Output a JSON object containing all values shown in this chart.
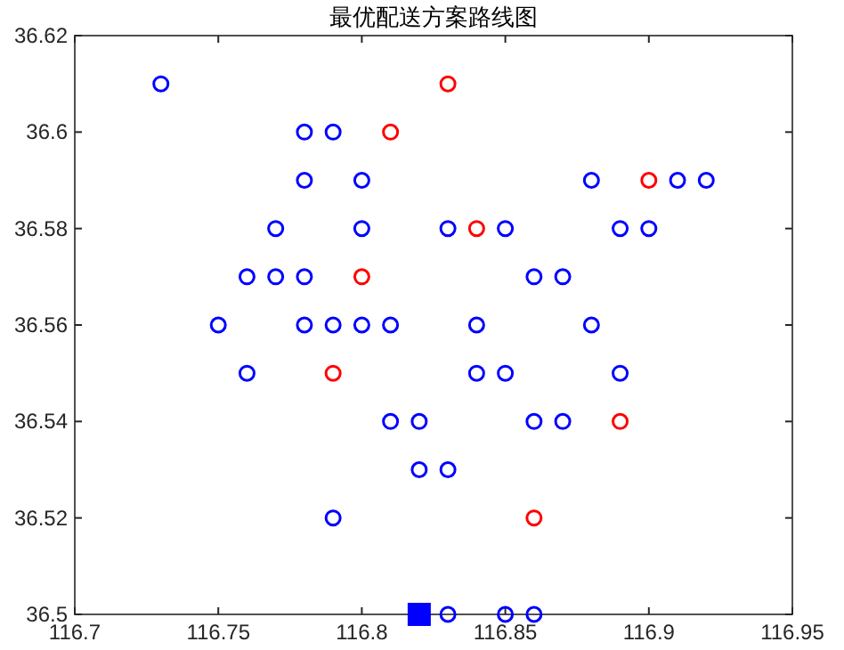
{
  "chart_data": {
    "type": "scatter",
    "title": "最优配送方案路线图",
    "xlim": [
      116.7,
      116.95
    ],
    "xticks": [
      {
        "value": 116.7,
        "label": "116.7"
      },
      116.75,
      {
        "value": 116.8,
        "label": "116.8"
      },
      116.85,
      {
        "value": 116.9,
        "label": "116.9"
      },
      116.95
    ],
    "ylim": [
      36.5,
      36.62
    ],
    "yticks": [
      {
        "value": 36.5,
        "label": "36.5"
      },
      36.52,
      36.54,
      36.56,
      36.58,
      {
        "value": 36.6,
        "label": "36.6"
      },
      36.62
    ],
    "grid": false,
    "series": [
      {
        "color": "#0000ff",
        "marker": "circle",
        "x": [
          116.73,
          116.78,
          116.79,
          116.78,
          116.8,
          116.88,
          116.91,
          116.92,
          116.77,
          116.8,
          116.83,
          116.85,
          116.89,
          116.9,
          116.76,
          116.77,
          116.78,
          116.86,
          116.87,
          116.75,
          116.78,
          116.79,
          116.8,
          116.81,
          116.84,
          116.88,
          116.76,
          116.84,
          116.85,
          116.89,
          116.81,
          116.82,
          116.86,
          116.87,
          116.82,
          116.83,
          116.79,
          116.83,
          116.85,
          116.86
        ],
        "values": [
          36.61,
          36.6,
          36.6,
          36.59,
          36.59,
          36.59,
          36.59,
          36.59,
          36.58,
          36.58,
          36.58,
          36.58,
          36.58,
          36.58,
          36.57,
          36.57,
          36.57,
          36.57,
          36.57,
          36.56,
          36.56,
          36.56,
          36.56,
          36.56,
          36.56,
          36.56,
          36.55,
          36.55,
          36.55,
          36.55,
          36.54,
          36.54,
          36.54,
          36.54,
          36.53,
          36.53,
          36.52,
          36.5,
          36.5,
          36.5
        ]
      },
      {
        "color": "#ff0000",
        "marker": "circle",
        "x": [
          116.83,
          116.81,
          116.9,
          116.84,
          116.8,
          116.79,
          116.89,
          116.86
        ],
        "values": [
          36.61,
          36.6,
          36.59,
          36.58,
          36.57,
          36.55,
          36.54,
          36.52
        ]
      },
      {
        "color": "#0000ff",
        "marker": "square",
        "x": [
          116.82
        ],
        "values": [
          36.5
        ]
      }
    ]
  }
}
